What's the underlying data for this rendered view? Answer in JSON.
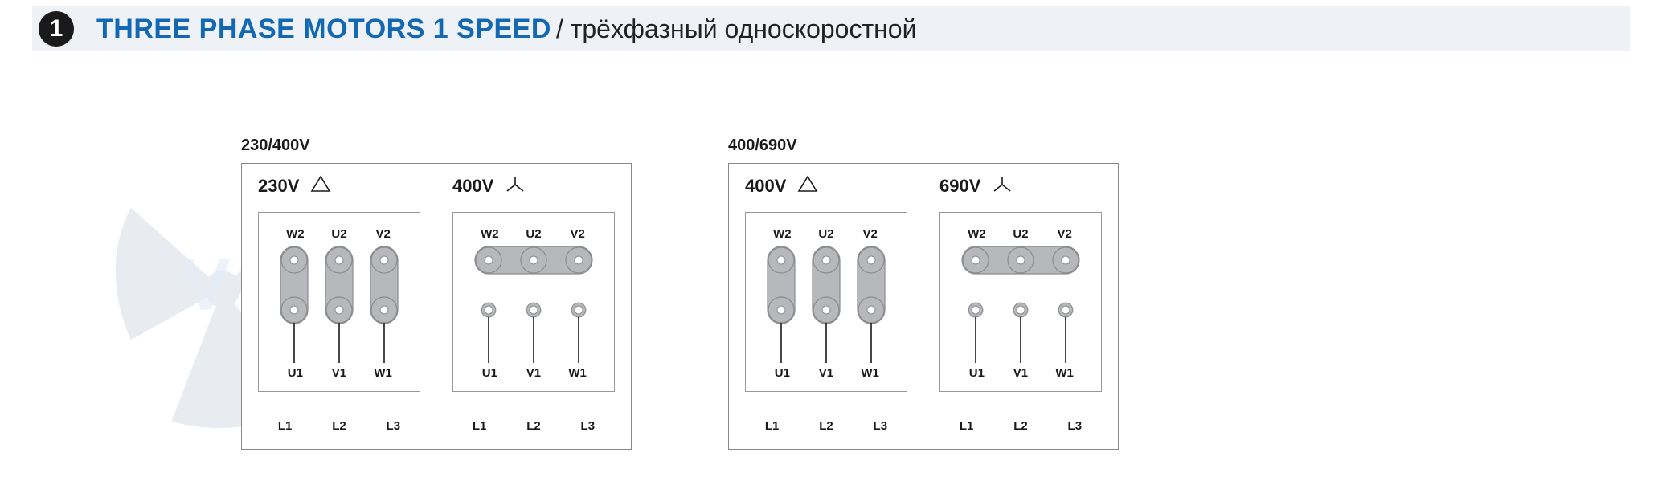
{
  "header": {
    "number": "1",
    "title_en": "THREE PHASE MOTORS 1 SPEED",
    "title_ru": "/ трёхфазный односкоростной"
  },
  "colors": {
    "accent": "#1268b3",
    "header_bg": "#eef2f6",
    "terminal_fill": "#b6b8bb",
    "terminal_stroke": "#8a8c8f",
    "box_border": "#888888",
    "text": "#1a1a1a",
    "wire": "#1a1a1a"
  },
  "terminal_style": {
    "circle_r": 16,
    "dot_r": 5,
    "col_spacing": 56,
    "row_spacing": 62,
    "link_width": 34,
    "stroke_width": 1.2
  },
  "groups": [
    {
      "label": "230/400V",
      "subs": [
        {
          "voltage": "230V",
          "connection": "delta",
          "top_labels": [
            "W2",
            "U2",
            "V2"
          ],
          "bottom_labels": [
            "U1",
            "V1",
            "W1"
          ],
          "line_labels": [
            "L1",
            "L2",
            "L3"
          ],
          "links": "vertical",
          "wires_from": "bottom"
        },
        {
          "voltage": "400V",
          "connection": "star",
          "top_labels": [
            "W2",
            "U2",
            "V2"
          ],
          "bottom_labels": [
            "U1",
            "V1",
            "W1"
          ],
          "line_labels": [
            "L1",
            "L2",
            "L3"
          ],
          "links": "horizontal-top",
          "wires_from": "bottom"
        }
      ]
    },
    {
      "label": "400/690V",
      "subs": [
        {
          "voltage": "400V",
          "connection": "delta",
          "top_labels": [
            "W2",
            "U2",
            "V2"
          ],
          "bottom_labels": [
            "U1",
            "V1",
            "W1"
          ],
          "line_labels": [
            "L1",
            "L2",
            "L3"
          ],
          "links": "vertical",
          "wires_from": "bottom"
        },
        {
          "voltage": "690V",
          "connection": "star",
          "top_labels": [
            "W2",
            "U2",
            "V2"
          ],
          "bottom_labels": [
            "U1",
            "V1",
            "W1"
          ],
          "line_labels": [
            "L1",
            "L2",
            "L3"
          ],
          "links": "horizontal-top",
          "wires_from": "bottom"
        }
      ]
    }
  ]
}
